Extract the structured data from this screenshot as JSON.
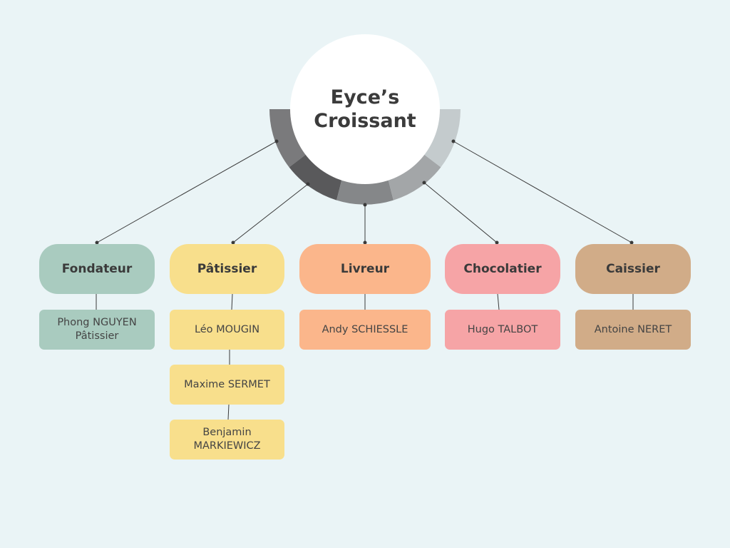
{
  "hub": {
    "line1": "Eyce’s",
    "line2": "Croissant"
  },
  "columns": [
    {
      "role": "Fondateur",
      "members": [
        {
          "line1": "Phong NGUYEN",
          "line2": "Pâtissier"
        }
      ]
    },
    {
      "role": "Pâtissier",
      "members": [
        {
          "line1": "Léo MOUGIN"
        },
        {
          "line1": "Maxime SERMET"
        },
        {
          "line1": "Benjamin",
          "line2": "MARKIEWICZ"
        }
      ]
    },
    {
      "role": "Livreur",
      "members": [
        {
          "line1": "Andy SCHIESSLE"
        }
      ]
    },
    {
      "role": "Chocolatier",
      "members": [
        {
          "line1": "Hugo TALBOT"
        }
      ]
    },
    {
      "role": "Caissier",
      "members": [
        {
          "line1": "Antoine NERET"
        }
      ]
    }
  ],
  "colors": {
    "background": "#eaf4f6",
    "fondateur": "#a9cbbf",
    "patissier": "#f8df8c",
    "livreur": "#fbb68b",
    "chocolatier": "#f6a4a6",
    "caissier": "#d1ac88",
    "ring_segments": [
      "#7a7a7c",
      "#59595b",
      "#858789",
      "#a3a6a8",
      "#c4cbcd"
    ],
    "connector": "#3a3a3a"
  }
}
